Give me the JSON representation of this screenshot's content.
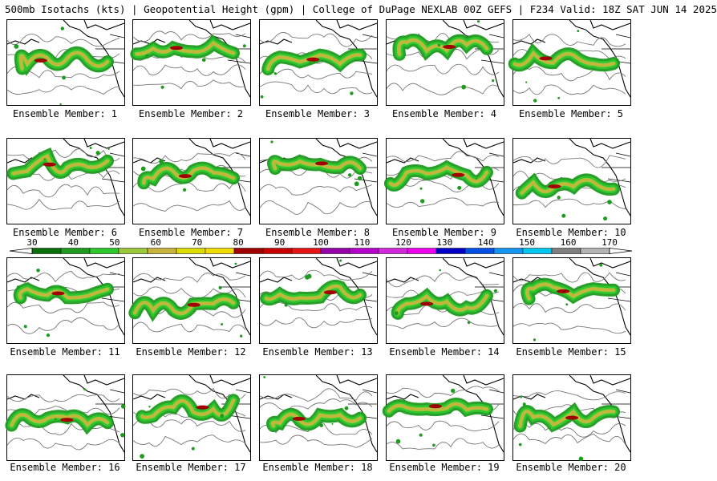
{
  "header": {
    "title": "500mb Isotachs (kts) | Geopotential Height (gpm) | College of DuPage NEXLAB   00Z GEFS | F234 Valid: 18Z SAT JUN 14 2025"
  },
  "colorbar": {
    "labels": [
      "30",
      "40",
      "50",
      "60",
      "70",
      "80",
      "90",
      "100",
      "110",
      "120",
      "130",
      "140",
      "150",
      "160",
      "170"
    ],
    "colors": [
      "#0a6e0a",
      "#1e9b1e",
      "#2ec82e",
      "#9cc83c",
      "#c8b43c",
      "#dcdc00",
      "#f0dc00",
      "#a00000",
      "#c80000",
      "#e61414",
      "#9600aa",
      "#b400c8",
      "#d228dc",
      "#f000f0",
      "#0000c8",
      "#0050e6",
      "#1496f0",
      "#00c8f0",
      "#808080",
      "#b4b4b4"
    ],
    "min": 30,
    "max": 170
  },
  "members": [
    {
      "label": "Ensemble Member: 1"
    },
    {
      "label": "Ensemble Member: 2"
    },
    {
      "label": "Ensemble Member: 3"
    },
    {
      "label": "Ensemble Member: 4"
    },
    {
      "label": "Ensemble Member: 5"
    },
    {
      "label": "Ensemble Member: 6"
    },
    {
      "label": "Ensemble Member: 7"
    },
    {
      "label": "Ensemble Member: 8"
    },
    {
      "label": "Ensemble Member: 9"
    },
    {
      "label": "Ensemble Member: 10"
    },
    {
      "label": "Ensemble Member: 11"
    },
    {
      "label": "Ensemble Member: 12"
    },
    {
      "label": "Ensemble Member: 13"
    },
    {
      "label": "Ensemble Member: 14"
    },
    {
      "label": "Ensemble Member: 15"
    },
    {
      "label": "Ensemble Member: 16"
    },
    {
      "label": "Ensemble Member: 17"
    },
    {
      "label": "Ensemble Member: 18"
    },
    {
      "label": "Ensemble Member: 19"
    },
    {
      "label": "Ensemble Member: 20"
    }
  ]
}
